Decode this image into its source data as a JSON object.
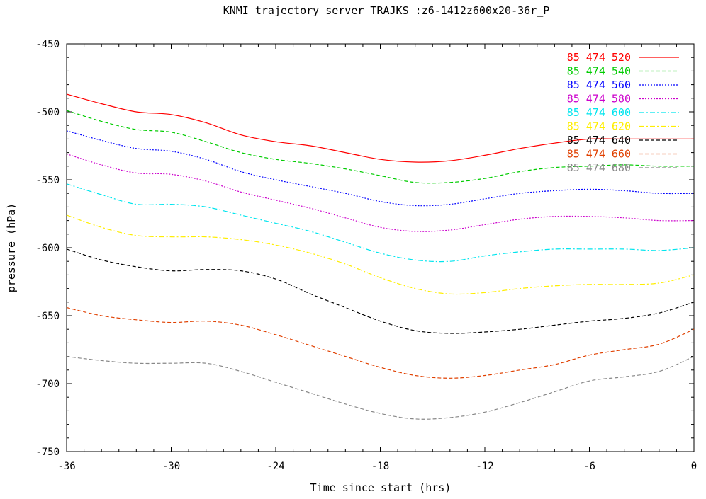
{
  "chart_data": {
    "type": "line",
    "title": "KNMI trajectory server TRAJKS :z6-1412z600x20-36r_P",
    "xlabel": "Time since start (hrs)",
    "ylabel": "pressure (hPa)",
    "xlim": [
      -36,
      0
    ],
    "ylim": [
      -750,
      -450
    ],
    "xticks": [
      -36,
      -30,
      -24,
      -18,
      -12,
      -6,
      0
    ],
    "yticks": [
      -750,
      -700,
      -650,
      -600,
      -550,
      -500,
      -450
    ],
    "xtick_labels": [
      "-36",
      "-30",
      "-24",
      "-18",
      "-12",
      "-6",
      "0"
    ],
    "ytick_labels": [
      "-750",
      "-700",
      "-650",
      "-600",
      "-550",
      "-500",
      "-450"
    ],
    "legend_position": "top-right",
    "grid": false,
    "x": [
      -36,
      -34,
      -32,
      -30,
      -28,
      -26,
      -24,
      -22,
      -20,
      -18,
      -16,
      -14,
      -12,
      -10,
      -8,
      -6,
      -4,
      -2,
      0
    ],
    "series": [
      {
        "name": "85 474 520",
        "color": "#ff0000",
        "dash": "solid",
        "values": [
          -487,
          -494,
          -500,
          -502,
          -508,
          -517,
          -522,
          -525,
          -530,
          -535,
          -537,
          -536,
          -532,
          -527,
          -523,
          -520,
          -520,
          -520,
          -520
        ]
      },
      {
        "name": "85 474 540",
        "color": "#00cc00",
        "dash": "dashed",
        "values": [
          -499,
          -507,
          -513,
          -515,
          -522,
          -530,
          -535,
          -538,
          -542,
          -547,
          -552,
          -552,
          -549,
          -544,
          -541,
          -540,
          -539,
          -540,
          -540
        ]
      },
      {
        "name": "85 474 560",
        "color": "#0000ff",
        "dash": "dotted",
        "values": [
          -514,
          -521,
          -527,
          -529,
          -535,
          -544,
          -550,
          -555,
          -560,
          -566,
          -569,
          -568,
          -564,
          -560,
          -558,
          -557,
          -558,
          -560,
          -560
        ]
      },
      {
        "name": "85 474 580",
        "color": "#cc00cc",
        "dash": "dotted",
        "values": [
          -531,
          -539,
          -545,
          -546,
          -551,
          -559,
          -565,
          -571,
          -578,
          -585,
          -588,
          -587,
          -583,
          -579,
          -577,
          -577,
          -578,
          -580,
          -580
        ]
      },
      {
        "name": "85 474 600",
        "color": "#00e5ee",
        "dash": "dashdot",
        "values": [
          -553,
          -561,
          -568,
          -568,
          -570,
          -576,
          -582,
          -588,
          -596,
          -604,
          -609,
          -610,
          -606,
          -603,
          -601,
          -601,
          -601,
          -602,
          -600
        ]
      },
      {
        "name": "85 474 620",
        "color": "#ffee00",
        "dash": "dashdot",
        "values": [
          -576,
          -585,
          -591,
          -592,
          -592,
          -594,
          -598,
          -604,
          -612,
          -622,
          -630,
          -634,
          -633,
          -630,
          -628,
          -627,
          -627,
          -626,
          -620
        ]
      },
      {
        "name": "85 474 640",
        "color": "#000000",
        "dash": "dashed",
        "values": [
          -601,
          -609,
          -614,
          -617,
          -616,
          -617,
          -623,
          -634,
          -644,
          -654,
          -661,
          -663,
          -662,
          -660,
          -657,
          -654,
          -652,
          -648,
          -640
        ]
      },
      {
        "name": "85 474 660",
        "color": "#e04000",
        "dash": "dashed",
        "values": [
          -644,
          -650,
          -653,
          -655,
          -654,
          -657,
          -664,
          -672,
          -680,
          -688,
          -694,
          -696,
          -694,
          -690,
          -686,
          -679,
          -675,
          -671,
          -660
        ]
      },
      {
        "name": "85 474 680",
        "color": "#888888",
        "dash": "dashed",
        "values": [
          -680,
          -683,
          -685,
          -685,
          -685,
          -691,
          -699,
          -707,
          -715,
          -722,
          -726,
          -725,
          -721,
          -714,
          -706,
          -698,
          -695,
          -691,
          -680
        ]
      }
    ]
  }
}
